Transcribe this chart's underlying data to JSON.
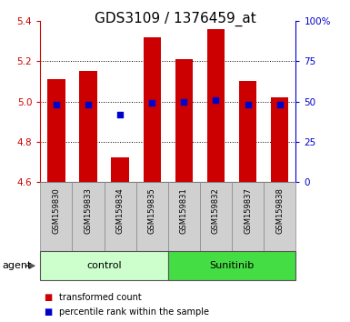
{
  "title": "GDS3109 / 1376459_at",
  "samples": [
    "GSM159830",
    "GSM159833",
    "GSM159834",
    "GSM159835",
    "GSM159831",
    "GSM159832",
    "GSM159837",
    "GSM159838"
  ],
  "bar_values": [
    5.11,
    5.15,
    4.72,
    5.32,
    5.21,
    5.36,
    5.1,
    5.02
  ],
  "bar_base": 4.6,
  "percentile_values": [
    4.985,
    4.985,
    4.935,
    4.995,
    4.998,
    5.005,
    4.985,
    4.985
  ],
  "groups": [
    {
      "label": "control",
      "indices": [
        0,
        1,
        2,
        3
      ],
      "color": "#ccffcc"
    },
    {
      "label": "Sunitinib",
      "indices": [
        4,
        5,
        6,
        7
      ],
      "color": "#44dd44"
    }
  ],
  "ylim": [
    4.6,
    5.4
  ],
  "yticks": [
    4.6,
    4.8,
    5.0,
    5.2,
    5.4
  ],
  "y2ticks": [
    0,
    25,
    50,
    75,
    100
  ],
  "y2labels": [
    "0",
    "25",
    "50",
    "75",
    "100%"
  ],
  "bar_color": "#cc0000",
  "percentile_color": "#0000cc",
  "grid_color": "#000000",
  "bg_color": "#ffffff",
  "agent_label": "agent",
  "legend_bar": "transformed count",
  "legend_dot": "percentile rank within the sample",
  "title_fontsize": 11,
  "tick_fontsize": 7.5,
  "axis_label_color_left": "#cc0000",
  "axis_label_color_right": "#0000cc",
  "sample_box_color": "#d0d0d0",
  "sample_box_edge": "#888888"
}
